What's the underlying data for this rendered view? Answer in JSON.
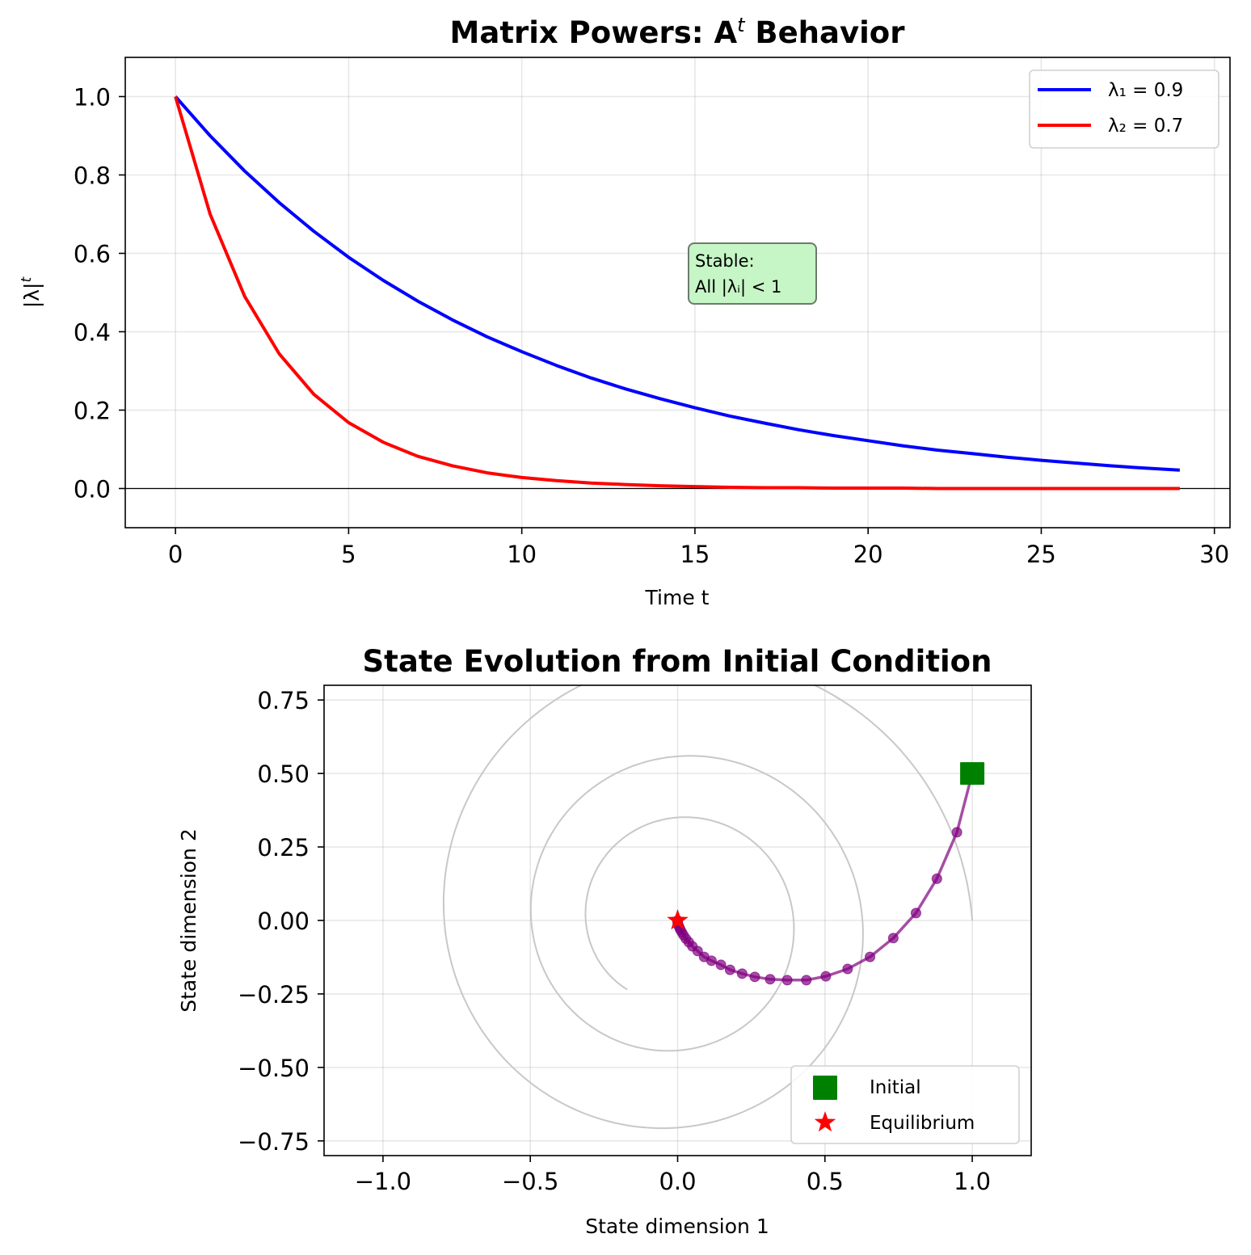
{
  "chart_data": [
    {
      "type": "line",
      "title": "Matrix Powers: A",
      "title_superscript": "t",
      "title_suffix": " Behavior",
      "xlabel": "Time t",
      "ylabel": "|λ|",
      "ylabel_superscript": "t",
      "xlim": [
        -1.45,
        30.45
      ],
      "ylim": [
        -0.1,
        1.1
      ],
      "xticks": [
        0,
        5,
        10,
        15,
        20,
        25,
        30
      ],
      "xtick_labels": [
        "0",
        "5",
        "10",
        "15",
        "20",
        "25",
        "30"
      ],
      "yticks": [
        0.0,
        0.2,
        0.4,
        0.6,
        0.8,
        1.0
      ],
      "ytick_labels": [
        "0.0",
        "0.2",
        "0.4",
        "0.6",
        "0.8",
        "1.0"
      ],
      "grid": true,
      "hline": 0,
      "x": [
        0,
        1,
        2,
        3,
        4,
        5,
        6,
        7,
        8,
        9,
        10,
        11,
        12,
        13,
        14,
        15,
        16,
        17,
        18,
        19,
        20,
        21,
        22,
        23,
        24,
        25,
        26,
        27,
        28,
        29
      ],
      "series": [
        {
          "name": "λ₁ = 0.9",
          "color": "#0000ff",
          "values": [
            1.0,
            0.9,
            0.81,
            0.729,
            0.656,
            0.59,
            0.531,
            0.478,
            0.43,
            0.387,
            0.349,
            0.314,
            0.282,
            0.254,
            0.229,
            0.206,
            0.185,
            0.167,
            0.15,
            0.135,
            0.122,
            0.109,
            0.098,
            0.089,
            0.08,
            0.072,
            0.065,
            0.058,
            0.052,
            0.047
          ]
        },
        {
          "name": "λ₂ = 0.7",
          "color": "#ff0000",
          "values": [
            1.0,
            0.7,
            0.49,
            0.343,
            0.24,
            0.168,
            0.118,
            0.082,
            0.058,
            0.04,
            0.028,
            0.02,
            0.014,
            0.01,
            0.007,
            0.005,
            0.003,
            0.002,
            0.002,
            0.001,
            0.001,
            0.001,
            0.0,
            0.0,
            0.0,
            0.0,
            0.0,
            0.0,
            0.0,
            0.0
          ]
        }
      ],
      "legend_position": "top-right",
      "annotation": {
        "lines": [
          "Stable:",
          "All |λᵢ| < 1"
        ],
        "x": 15,
        "y": 0.5,
        "facecolor": "#c6f5c6",
        "edgecolor": "#6d7a6d"
      }
    },
    {
      "type": "scatter",
      "title": "State Evolution from Initial Condition",
      "xlabel": "State dimension 1",
      "ylabel": "State dimension 2",
      "xlim": [
        -1.2,
        1.2
      ],
      "ylim": [
        -0.8,
        0.8
      ],
      "xticks": [
        -1.0,
        -0.5,
        0.0,
        0.5,
        1.0
      ],
      "xtick_labels": [
        "−1.0",
        "−0.5",
        "0.0",
        "0.5",
        "1.0"
      ],
      "yticks": [
        0.75,
        0.5,
        0.25,
        0.0,
        -0.25,
        -0.5,
        -0.75
      ],
      "ytick_labels": [
        "0.75",
        "0.50",
        "0.25",
        "0.00",
        "−0.25",
        "−0.50",
        "−0.75"
      ],
      "grid": true,
      "spiral": {
        "color": "#c8c8c8",
        "start": [
          1.0,
          0.0
        ],
        "center": [
          0.0,
          0.0
        ],
        "decay_per_quarter_turn": 0.89,
        "turns": 2.65
      },
      "trajectory": {
        "color": "#800080",
        "points": [
          [
            1.0,
            0.5
          ],
          [
            0.948,
            0.3
          ],
          [
            0.88,
            0.142
          ],
          [
            0.809,
            0.025
          ],
          [
            0.732,
            -0.06
          ],
          [
            0.653,
            -0.124
          ],
          [
            0.577,
            -0.165
          ],
          [
            0.503,
            -0.19
          ],
          [
            0.437,
            -0.203
          ],
          [
            0.372,
            -0.203
          ],
          [
            0.314,
            -0.2
          ],
          [
            0.262,
            -0.192
          ],
          [
            0.219,
            -0.181
          ],
          [
            0.178,
            -0.168
          ],
          [
            0.147,
            -0.151
          ],
          [
            0.115,
            -0.137
          ],
          [
            0.09,
            -0.124
          ],
          [
            0.068,
            -0.104
          ],
          [
            0.05,
            -0.088
          ],
          [
            0.038,
            -0.074
          ],
          [
            0.028,
            -0.062
          ],
          [
            0.02,
            -0.05
          ],
          [
            0.014,
            -0.04
          ],
          [
            0.009,
            -0.031
          ],
          [
            0.006,
            -0.024
          ],
          [
            0.003,
            -0.017
          ],
          [
            0.001,
            -0.011
          ],
          [
            0.0,
            -0.006
          ],
          [
            0.0,
            -0.002
          ],
          [
            0.0,
            0.0
          ]
        ]
      },
      "initial": {
        "label": "Initial",
        "x": 1.0,
        "y": 0.5,
        "color": "#008000"
      },
      "equilibrium": {
        "label": "Equilibrium",
        "x": 0.0,
        "y": 0.0,
        "color": "#ff0000"
      },
      "legend_position": "bottom-right"
    }
  ]
}
